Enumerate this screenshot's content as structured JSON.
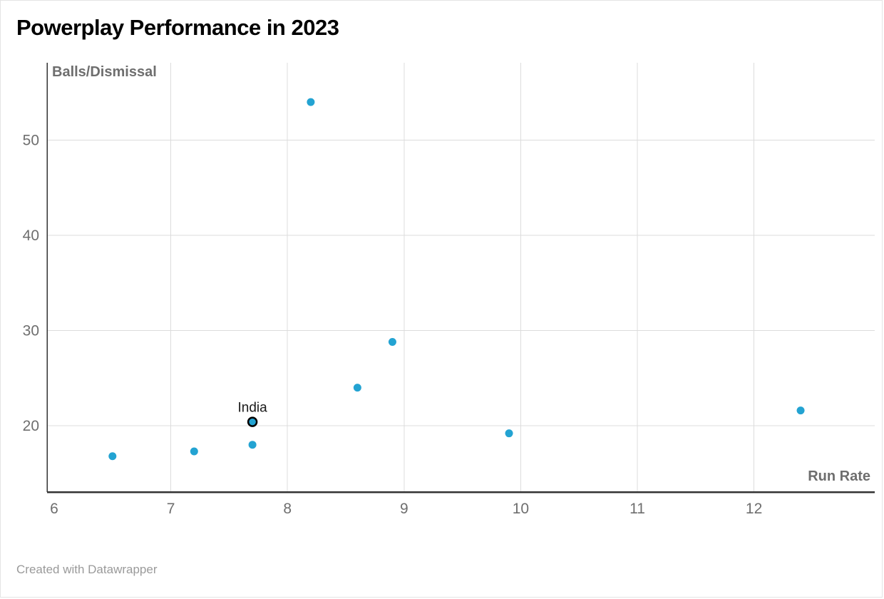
{
  "header": {
    "title": "Powerplay Performance in 2023"
  },
  "footer": {
    "attribution": "Created with Datawrapper"
  },
  "chart_data": {
    "type": "scatter",
    "title": "Powerplay Performance in 2023",
    "xlabel": "Run Rate",
    "ylabel": "Balls/Dismissal",
    "xlim": [
      5.94,
      13.05
    ],
    "ylim": [
      13,
      56.5
    ],
    "x_ticks": [
      6,
      7,
      8,
      9,
      10,
      11,
      12
    ],
    "y_ticks": [
      20,
      30,
      40,
      50
    ],
    "grid": true,
    "legend": "none",
    "point_color": "#23a3d2",
    "highlight_stroke": "#000000",
    "points": [
      {
        "x": 6.5,
        "y": 16.8
      },
      {
        "x": 7.2,
        "y": 17.3
      },
      {
        "x": 7.7,
        "y": 18.0
      },
      {
        "x": 7.7,
        "y": 20.4,
        "label": "India",
        "highlighted": true
      },
      {
        "x": 8.2,
        "y": 54.0
      },
      {
        "x": 8.6,
        "y": 24.0
      },
      {
        "x": 8.9,
        "y": 28.8
      },
      {
        "x": 9.9,
        "y": 19.2
      },
      {
        "x": 12.4,
        "y": 21.6
      }
    ]
  }
}
